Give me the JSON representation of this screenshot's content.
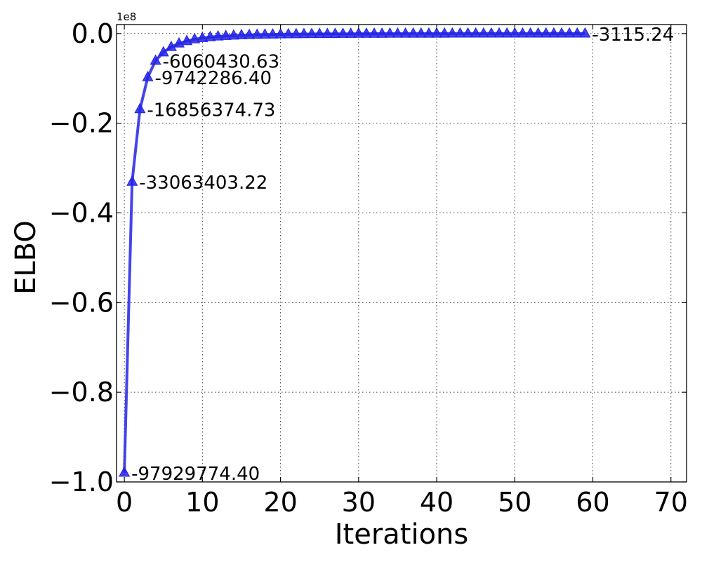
{
  "chart_data": {
    "type": "line",
    "title": "",
    "xlabel": "Iterations",
    "ylabel": "ELBO",
    "y_offset_label": "1e8",
    "xlim": [
      -1,
      72
    ],
    "ylim": [
      -1.0,
      0.02
    ],
    "y_scale_factor": 100000000,
    "xticks": [
      0,
      10,
      20,
      30,
      40,
      50,
      60,
      70
    ],
    "xtick_labels": [
      "0",
      "10",
      "20",
      "30",
      "40",
      "50",
      "60",
      "70"
    ],
    "yticks": [
      -1.0,
      -0.8,
      -0.6,
      -0.4,
      -0.2,
      0.0
    ],
    "ytick_labels": [
      "−1.0",
      "−0.8",
      "−0.6",
      "−0.4",
      "−0.2",
      "0.0"
    ],
    "grid": true,
    "marker": "triangle",
    "color": "#2323e6",
    "series": [
      {
        "x": [
          0,
          1,
          2,
          3,
          4,
          5,
          6,
          7,
          8,
          9,
          10,
          11,
          12,
          13,
          14,
          15,
          16,
          17,
          18,
          19,
          20,
          21,
          22,
          23,
          24,
          25,
          26,
          27,
          28,
          29,
          30,
          31,
          32,
          33,
          34,
          35,
          36,
          37,
          38,
          39,
          40,
          41,
          42,
          43,
          44,
          45,
          46,
          47,
          48,
          49,
          50,
          51,
          52,
          53,
          54,
          55,
          56,
          57,
          58,
          59
        ],
        "y": [
          -0.9793,
          -0.3306,
          -0.1686,
          -0.0974,
          -0.0606,
          -0.042,
          -0.03,
          -0.0222,
          -0.0168,
          -0.0128,
          -0.01,
          -0.008,
          -0.0065,
          -0.0054,
          -0.0045,
          -0.0038,
          -0.0033,
          -0.0028,
          -0.0024,
          -0.0021,
          -0.0018,
          -0.0016,
          -0.0014,
          -0.0012,
          -0.0011,
          -0.001,
          -0.0009,
          -0.0008,
          -0.0007,
          -0.0006,
          -0.0005,
          -0.0005,
          -0.0004,
          -0.0004,
          -0.0003,
          -0.0003,
          -0.0003,
          -0.0002,
          -0.0002,
          -0.0002,
          -0.0002,
          -0.0002,
          -0.0001,
          -0.0001,
          -0.0001,
          -0.0001,
          -0.0001,
          -0.0001,
          -0.0001,
          -0.0001,
          -0.0001,
          -0.0001,
          -0.0001,
          -5e-05,
          -5e-05,
          -5e-05,
          -5e-05,
          -5e-05,
          -5e-05,
          -3e-05
        ]
      }
    ],
    "annotations": [
      {
        "x": 0,
        "y": -0.9793,
        "text": "-97929774.40"
      },
      {
        "x": 1,
        "y": -0.3306,
        "text": "-33063403.22"
      },
      {
        "x": 2,
        "y": -0.1686,
        "text": "-16856374.73"
      },
      {
        "x": 3,
        "y": -0.0974,
        "text": "-9742286.40"
      },
      {
        "x": 4,
        "y": -0.0606,
        "text": "-6060430.63"
      },
      {
        "x": 59,
        "y": -3e-05,
        "text": "-3115.24"
      }
    ]
  }
}
